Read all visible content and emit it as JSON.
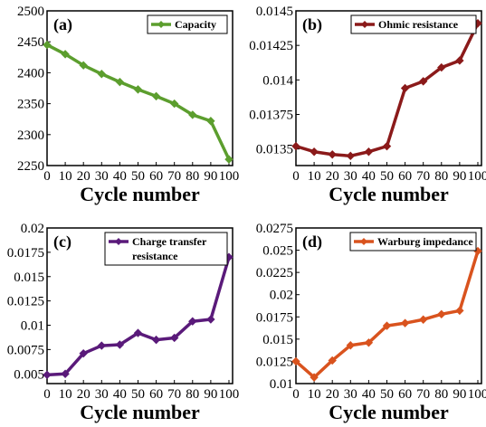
{
  "chart_data": [
    {
      "type": "line",
      "panel": "(a)",
      "x": [
        0,
        10,
        20,
        30,
        40,
        50,
        60,
        70,
        80,
        90,
        100
      ],
      "series": [
        {
          "name": "Capacity",
          "color": "#5c9e2e",
          "values": [
            2445,
            2430,
            2412,
            2398,
            2385,
            2373,
            2362,
            2350,
            2332,
            2322,
            2260
          ]
        }
      ],
      "xlabel": "Cycle number",
      "xticks": [
        "0",
        "10",
        "20",
        "30",
        "40",
        "50",
        "60",
        "70",
        "80",
        "90",
        "100"
      ],
      "ylim": [
        2250,
        2500
      ],
      "yticks": [
        "2250",
        "2300",
        "2350",
        "2400",
        "2450",
        "2500"
      ],
      "legend": "top-right",
      "grid": false
    },
    {
      "type": "line",
      "panel": "(b)",
      "x": [
        0,
        10,
        20,
        30,
        40,
        50,
        60,
        70,
        80,
        90,
        100
      ],
      "series": [
        {
          "name": "Ohmic resistance",
          "color": "#8b1a1a",
          "values": [
            0.01352,
            0.01348,
            0.01346,
            0.01345,
            0.01348,
            0.01352,
            0.01394,
            0.01399,
            0.01409,
            0.01414,
            0.01441
          ]
        }
      ],
      "xlabel": "Cycle number",
      "xticks": [
        "0",
        "10",
        "20",
        "30",
        "40",
        "50",
        "60",
        "70",
        "80",
        "90",
        "100"
      ],
      "ylim": [
        0.01338,
        0.0145
      ],
      "yticks": [
        "0.0135",
        "0.01375",
        "0.014",
        "0.01425",
        "0.0145"
      ],
      "legend": "top-right",
      "grid": false
    },
    {
      "type": "line",
      "panel": "(c)",
      "x": [
        0,
        10,
        20,
        30,
        40,
        50,
        60,
        70,
        80,
        90,
        100
      ],
      "series": [
        {
          "name": "Charge transfer resistance",
          "name_lines": [
            "Charge transfer",
            "resistance"
          ],
          "color": "#5a1a7a",
          "values": [
            0.0049,
            0.005,
            0.0071,
            0.0079,
            0.008,
            0.0092,
            0.0085,
            0.0087,
            0.0104,
            0.0106,
            0.017
          ]
        }
      ],
      "xlabel": "Cycle number",
      "xticks": [
        "0",
        "10",
        "20",
        "30",
        "40",
        "50",
        "60",
        "70",
        "80",
        "90",
        "100"
      ],
      "ylim": [
        0.004,
        0.02
      ],
      "yticks": [
        "0.005",
        "0.0075",
        "0.01",
        "0.0125",
        "0.015",
        "0.0175",
        "0.02"
      ],
      "legend": "top-right",
      "grid": false
    },
    {
      "type": "line",
      "panel": "(d)",
      "x": [
        0,
        10,
        20,
        30,
        40,
        50,
        60,
        70,
        80,
        90,
        100
      ],
      "series": [
        {
          "name": "Warburg impedance",
          "color": "#d9531e",
          "values": [
            0.0125,
            0.0107,
            0.0126,
            0.0143,
            0.0146,
            0.0165,
            0.0168,
            0.0172,
            0.0178,
            0.0182,
            0.0249
          ]
        }
      ],
      "xlabel": "Cycle number",
      "xticks": [
        "0",
        "10",
        "20",
        "30",
        "40",
        "50",
        "60",
        "70",
        "80",
        "90",
        "100"
      ],
      "ylim": [
        0.01,
        0.0275
      ],
      "yticks": [
        "0.01",
        "0.0125",
        "0.015",
        "0.0175",
        "0.02",
        "0.0225",
        "0.025",
        "0.0275"
      ],
      "legend": "top-right",
      "grid": false
    }
  ]
}
